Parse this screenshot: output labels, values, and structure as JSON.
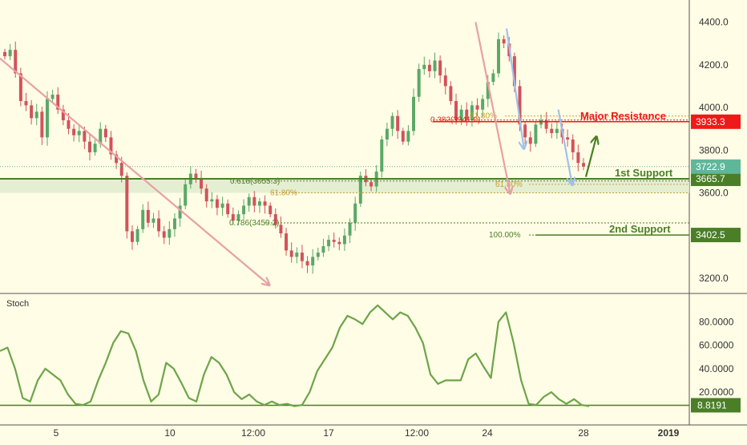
{
  "colors": {
    "background": "#fffde6",
    "up": "#5aa867",
    "down": "#d2525c",
    "wick": "#9a9a9a",
    "trend_line": "#e8a0a4",
    "blue_arrow": "#9ec1ee",
    "green_level": "#4a7f27",
    "red_level": "#f01818",
    "fib_gold": "#c4a133",
    "stoch_line": "#6da44a",
    "last_price": "#5fb79a",
    "axis_text": "#333333",
    "grid_dots": "#777777"
  },
  "chart_data": [
    {
      "type": "candlestick",
      "ylim": [
        3140,
        4480
      ],
      "x_tick_labels": [
        "5",
        "10",
        "12:00",
        "17",
        "12:00",
        "24",
        "28",
        "2019"
      ],
      "y_tick_values": [
        4400.0,
        4200.0,
        4000.0,
        3800.0,
        3600.0,
        3200.0
      ],
      "y_tick_labels": [
        "4400.0",
        "4200.0",
        "4000.0",
        "3800.0",
        "3600.0",
        "3200.0"
      ],
      "price_path": [
        4240,
        4270,
        4160,
        4030,
        4010,
        3950,
        3980,
        3860,
        4040,
        4060,
        3990,
        3940,
        3900,
        3870,
        3890,
        3840,
        3790,
        3830,
        3900,
        3860,
        3780,
        3740,
        3680,
        3420,
        3370,
        3430,
        3520,
        3460,
        3480,
        3420,
        3390,
        3430,
        3480,
        3540,
        3640,
        3690,
        3670,
        3620,
        3560,
        3570,
        3530,
        3550,
        3500,
        3470,
        3500,
        3540,
        3580,
        3540,
        3560,
        3540,
        3500,
        3450,
        3410,
        3330,
        3300,
        3320,
        3280,
        3260,
        3300,
        3320,
        3350,
        3380,
        3370,
        3360,
        3400,
        3460,
        3550,
        3680,
        3650,
        3630,
        3700,
        3850,
        3900,
        3960,
        3890,
        3840,
        3890,
        4050,
        4180,
        4200,
        4170,
        4220,
        4150,
        4100,
        4030,
        3940,
        3990,
        3940,
        4010,
        3990,
        4040,
        4120,
        4160,
        4320,
        4300,
        4240,
        4100,
        3920,
        3860,
        3830,
        3920,
        3940,
        3900,
        3880,
        3900,
        3860,
        3850,
        3790,
        3740,
        3723
      ],
      "last_price": "3722.9",
      "lines": [
        {
          "label": "Major Resistance",
          "value": 3933.3,
          "badge": "3933.3"
        },
        {
          "label": "1st Support",
          "value": 3665.7,
          "badge": "3665.7"
        },
        {
          "label": "2nd Support",
          "value": 3402.5,
          "badge": "3402.5"
        }
      ],
      "fib_levels": [
        {
          "label": "0.382(3941.0)",
          "value": 3941.0
        },
        {
          "label": "61.80%",
          "value": 3960.0
        },
        {
          "label": "0.618(3655.3)",
          "value": 3655.3
        },
        {
          "label": "61.80%",
          "value": 3600.0
        },
        {
          "label": "61.80%",
          "value": 3640.0
        },
        {
          "label": "0.786(3459.2)",
          "value": 3459.2
        },
        {
          "label": "100.00%",
          "value": 3402.5
        }
      ],
      "support_zone": [
        3600.0,
        3665.7
      ],
      "arrows": [
        {
          "from": [
            0.0,
            4230
          ],
          "to": [
            0.39,
            3170
          ],
          "kind": "downtrend"
        },
        {
          "from": [
            0.69,
            4400
          ],
          "to": [
            0.74,
            3600
          ],
          "kind": "downtrend"
        },
        {
          "from": [
            0.735,
            4370
          ],
          "to": [
            0.76,
            3810
          ],
          "kind": "projection"
        },
        {
          "from": [
            0.81,
            3990
          ],
          "to": [
            0.83,
            3640
          ],
          "kind": "projection"
        },
        {
          "from": [
            0.85,
            3675
          ],
          "to": [
            0.865,
            3860
          ],
          "kind": "up"
        }
      ]
    },
    {
      "type": "line",
      "title": "Stoch",
      "ylim": [
        5,
        100
      ],
      "y_tick_values": [
        80.0,
        60.0,
        40.0,
        20.0
      ],
      "y_tick_labels": [
        "80.0000",
        "60.0000",
        "40.0000",
        "20.0000"
      ],
      "current": "8.8191",
      "threshold": 8.8,
      "values": [
        55,
        58,
        40,
        15,
        12,
        30,
        40,
        35,
        30,
        18,
        10,
        9,
        12,
        30,
        45,
        62,
        72,
        70,
        55,
        30,
        12,
        18,
        45,
        40,
        28,
        15,
        12,
        35,
        50,
        45,
        35,
        20,
        14,
        18,
        12,
        9,
        12,
        9,
        10,
        8,
        9,
        20,
        38,
        48,
        58,
        75,
        85,
        82,
        78,
        88,
        94,
        88,
        82,
        88,
        85,
        75,
        62,
        35,
        27,
        30,
        30,
        30,
        48,
        53,
        42,
        32,
        80,
        88,
        62,
        30,
        10,
        9,
        16,
        20,
        14,
        10,
        14,
        9,
        8
      ]
    }
  ]
}
